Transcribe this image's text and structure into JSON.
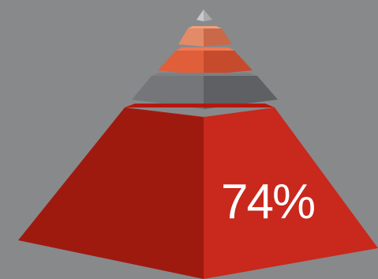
{
  "pyramid": {
    "percent_label": "74%",
    "percent_value": 74,
    "tiers": [
      {
        "name": "top-cap",
        "colors": {
          "left": "#c9c9cc",
          "right": "#a9aaad",
          "top": "#e2e2e4"
        }
      },
      {
        "name": "tier-light-orange",
        "colors": {
          "left": "#e38a66",
          "right": "#c9694a",
          "top": "#f0a07e"
        }
      },
      {
        "name": "tier-orange",
        "colors": {
          "left": "#e05e3a",
          "right": "#c64b2d",
          "top": "#ee7a55"
        }
      },
      {
        "name": "tier-gray",
        "colors": {
          "left": "#757679",
          "right": "#5f6063",
          "top": "#7e7f82"
        }
      },
      {
        "name": "tier-red-base",
        "colors": {
          "left": "#9e1a0f",
          "right": "#c9281c",
          "top": "#b5170d"
        }
      }
    ]
  }
}
